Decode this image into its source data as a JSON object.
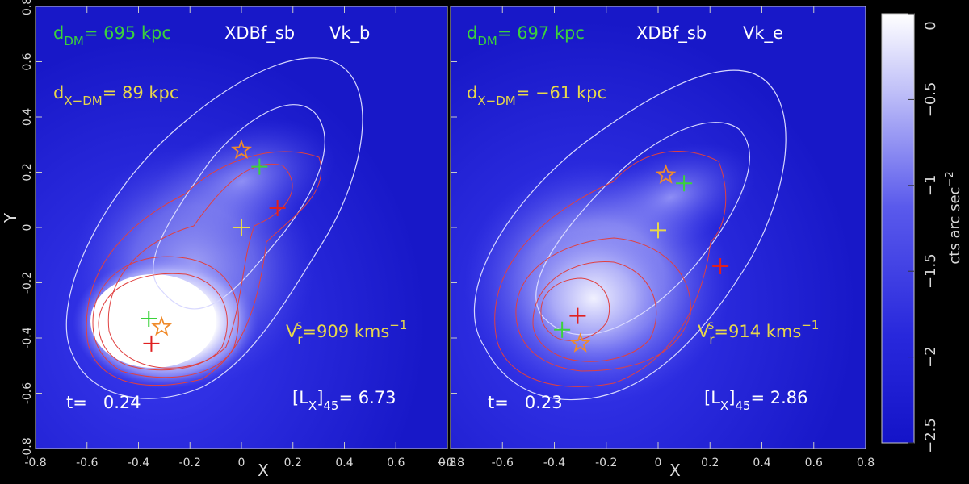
{
  "chart_data": [
    {
      "type": "heatmap",
      "panel": "left",
      "title": "",
      "xlabel": "X",
      "ylabel": "Y",
      "xlim": [
        -0.8,
        0.8
      ],
      "ylim": [
        -0.8,
        0.8
      ],
      "x_ticks": [
        "-0.8",
        "-0.6",
        "-0.4",
        "-0.2",
        "0",
        "0.2",
        "0.4",
        "0.6",
        "0.8"
      ],
      "y_ticks": [
        "-0.8",
        "-0.6",
        "-0.4",
        "-0.2",
        "0",
        "0.2",
        "0.4",
        "0.6",
        "0.8"
      ],
      "annotations": {
        "d_dm": {
          "main": "d",
          "sub": "DM",
          "rest": "= 695 kpc",
          "color": "#3bd23b"
        },
        "run": {
          "text": "XDBf_sb",
          "color": "#ffffff"
        },
        "model": {
          "text": "Vk_b",
          "color": "#ffffff"
        },
        "d_xdm": {
          "main": "d",
          "sub": "X−DM",
          "rest": "=  89 kpc",
          "color": "#e8d84a"
        },
        "vr": {
          "main": "V",
          "sub": "r",
          "sup": "s",
          "rest": "=909 kms",
          "sup2": "−1",
          "color": "#e8d84a"
        },
        "lx": {
          "pre": "[L",
          "sub": "X",
          "mid": "]",
          "sub2": "45",
          "rest": "= 6.73",
          "color": "#ffffff"
        },
        "time": {
          "text": "t=   0.24",
          "color": "#ffffff"
        }
      },
      "markers": [
        {
          "kind": "star",
          "color": "#f08a2a",
          "x": 0.0,
          "y": 0.28
        },
        {
          "kind": "plus",
          "color": "#3bd23b",
          "x": 0.07,
          "y": 0.22
        },
        {
          "kind": "plus",
          "color": "#e02020",
          "x": 0.14,
          "y": 0.07
        },
        {
          "kind": "plus",
          "color": "#e8d84a",
          "x": 0.0,
          "y": 0.0
        },
        {
          "kind": "plus",
          "color": "#3bd23b",
          "x": -0.36,
          "y": -0.33
        },
        {
          "kind": "star",
          "color": "#f08a2a",
          "x": -0.31,
          "y": -0.36
        },
        {
          "kind": "plus",
          "color": "#e02020",
          "x": -0.35,
          "y": -0.42
        }
      ]
    },
    {
      "type": "heatmap",
      "panel": "right",
      "title": "",
      "xlabel": "X",
      "ylabel": "",
      "xlim": [
        -0.8,
        0.8
      ],
      "ylim": [
        -0.8,
        0.8
      ],
      "x_ticks": [
        "−0.8",
        "-0.6",
        "-0.4",
        "-0.2",
        "0",
        "0.2",
        "0.4",
        "0.6",
        "0.8"
      ],
      "annotations": {
        "d_dm": {
          "main": "d",
          "sub": "DM",
          "rest": "= 697 kpc",
          "color": "#3bd23b"
        },
        "run": {
          "text": "XDBf_sb",
          "color": "#ffffff"
        },
        "model": {
          "text": "Vk_e",
          "color": "#ffffff"
        },
        "d_xdm": {
          "main": "d",
          "sub": "X−DM",
          "rest": "= −61 kpc",
          "color": "#e8d84a"
        },
        "vr": {
          "main": "V",
          "sub": "r",
          "sup": "s",
          "rest": "=914 kms",
          "sup2": "−1",
          "color": "#e8d84a"
        },
        "lx": {
          "pre": "[L",
          "sub": "X",
          "mid": "]",
          "sub2": "45",
          "rest": "= 2.86",
          "color": "#ffffff"
        },
        "time": {
          "text": "t=   0.23",
          "color": "#ffffff"
        }
      },
      "markers": [
        {
          "kind": "star",
          "color": "#f08a2a",
          "x": 0.03,
          "y": 0.19
        },
        {
          "kind": "plus",
          "color": "#3bd23b",
          "x": 0.1,
          "y": 0.16
        },
        {
          "kind": "plus",
          "color": "#e8d84a",
          "x": 0.0,
          "y": -0.01
        },
        {
          "kind": "plus",
          "color": "#e02020",
          "x": 0.24,
          "y": -0.14
        },
        {
          "kind": "plus",
          "color": "#e02020",
          "x": -0.31,
          "y": -0.32
        },
        {
          "kind": "plus",
          "color": "#3bd23b",
          "x": -0.37,
          "y": -0.37
        },
        {
          "kind": "star",
          "color": "#f08a2a",
          "x": -0.3,
          "y": -0.42
        }
      ]
    }
  ],
  "colorbar": {
    "label": "cts arc sec",
    "label_sup": "−2",
    "range": [
      -2.5,
      0
    ],
    "ticks": [
      "0",
      "−0.5",
      "−1",
      "−1.5",
      "−2",
      "−2.5"
    ],
    "color_low": "#1a1ad6",
    "color_high": "#ffffff"
  }
}
